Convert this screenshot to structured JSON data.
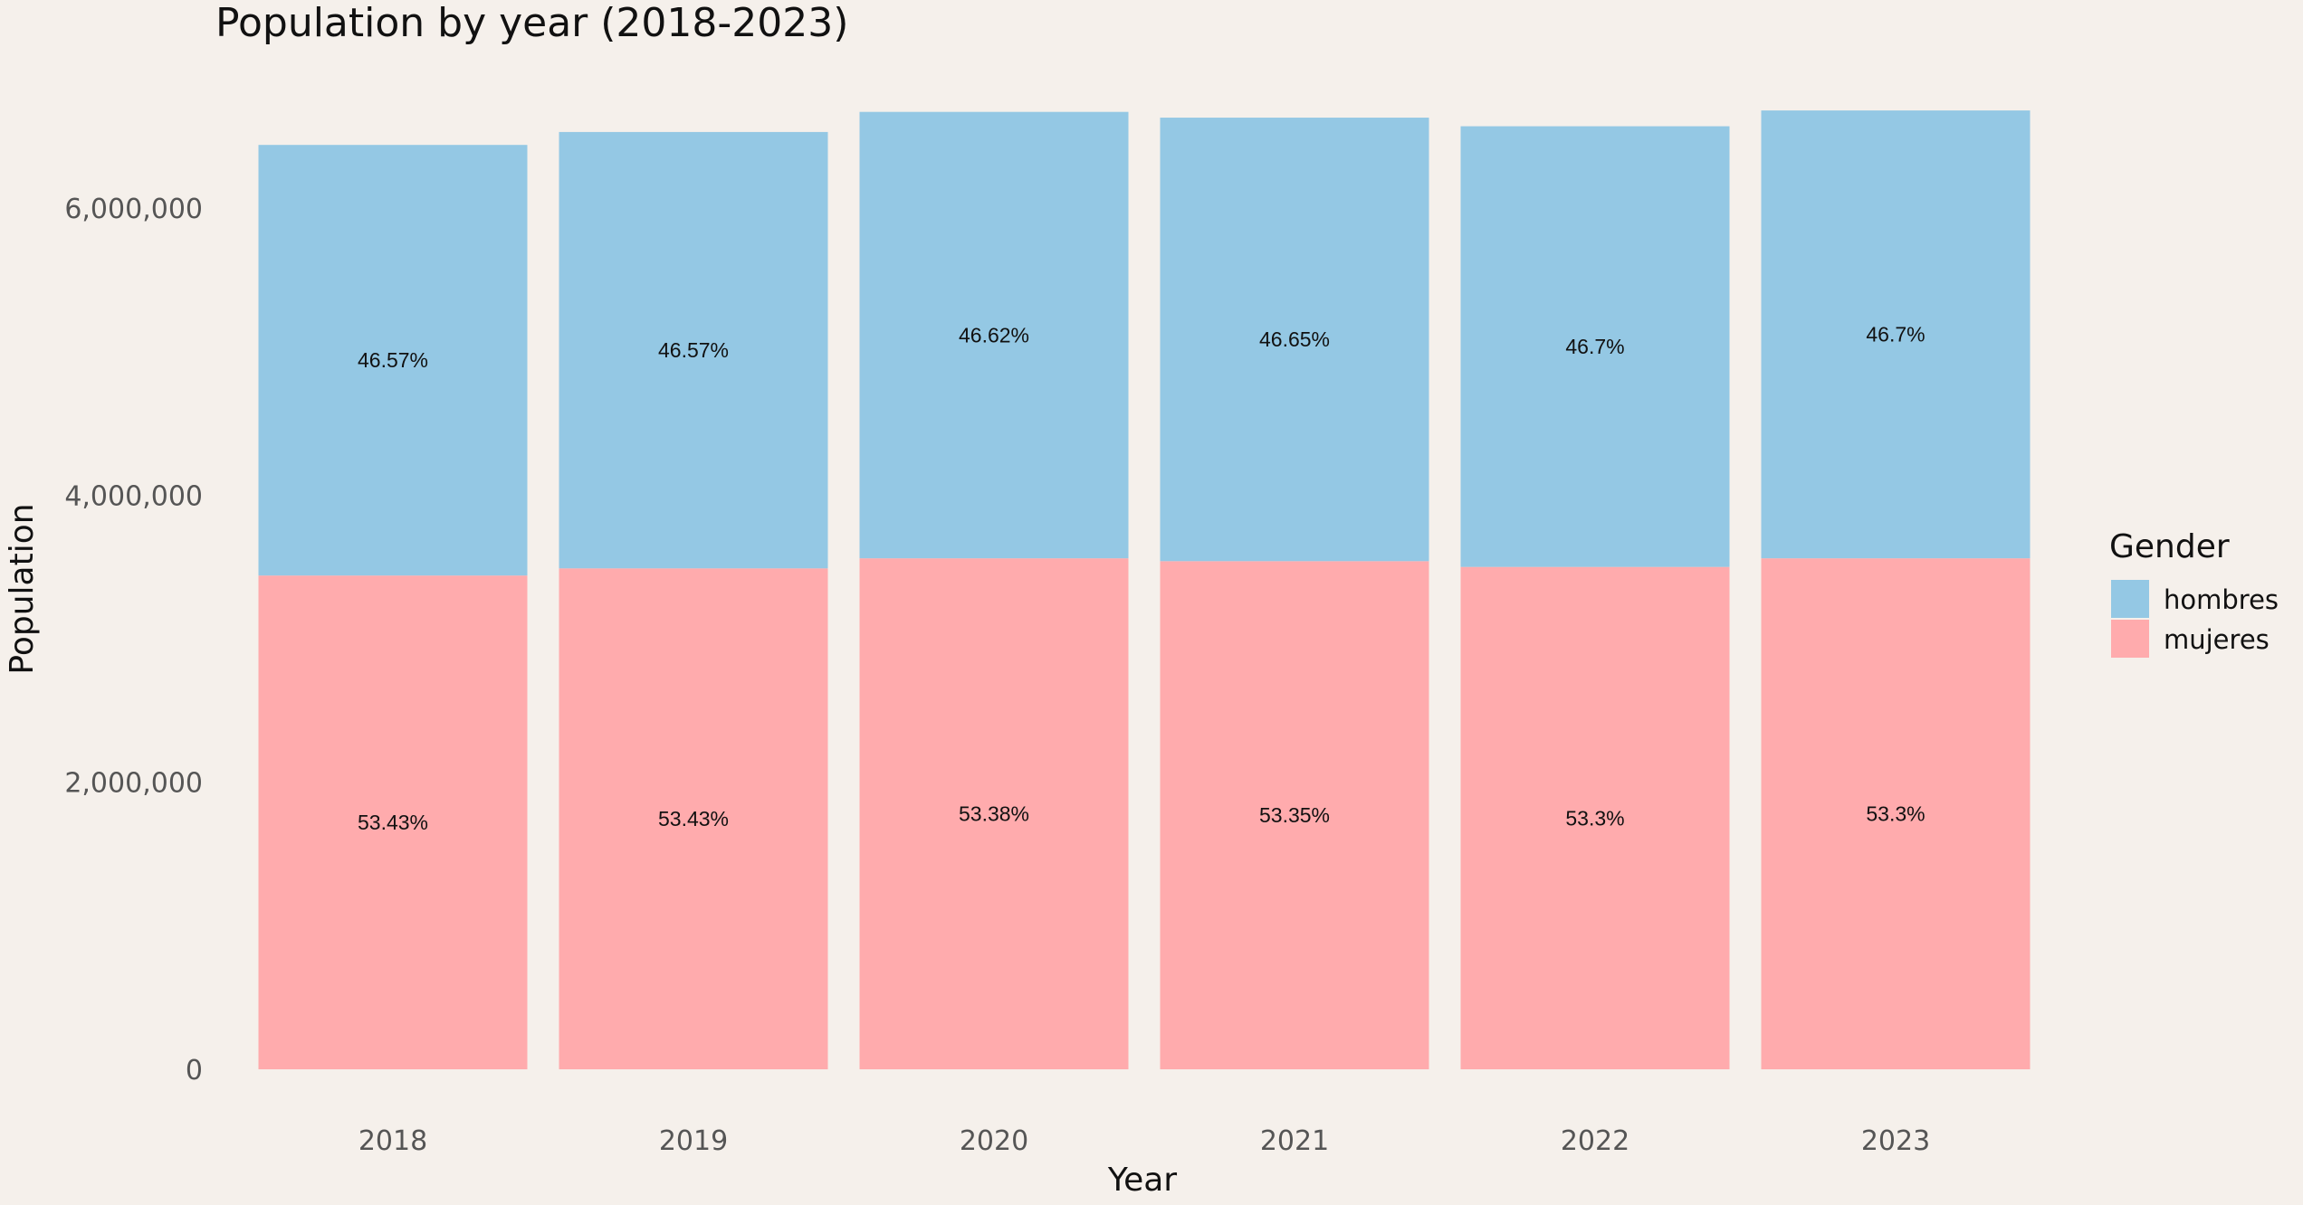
{
  "chart_data": {
    "type": "bar",
    "stacked": true,
    "title": "Population by year (2018-2023)",
    "xlabel": "Year",
    "ylabel": "Population",
    "categories": [
      "2018",
      "2019",
      "2020",
      "2021",
      "2022",
      "2023"
    ],
    "ylim": [
      0,
      6700000
    ],
    "yticks": [
      0,
      2000000,
      4000000,
      6000000
    ],
    "ytick_labels": [
      "0",
      "2,000,000",
      "4,000,000",
      "6,000,000"
    ],
    "grid": false,
    "legend": {
      "title": "Gender",
      "position": "right",
      "entries": [
        "hombres",
        "mujeres"
      ]
    },
    "series": [
      {
        "name": "mujeres",
        "color": "#ffabad",
        "values": [
          3440000,
          3490000,
          3560000,
          3540000,
          3500000,
          3560000
        ],
        "labels": [
          "53.43%",
          "53.43%",
          "53.38%",
          "53.35%",
          "53.3%",
          "53.3%"
        ]
      },
      {
        "name": "hombres",
        "color": "#94c8e4",
        "values": [
          3000000,
          3040000,
          3110000,
          3090000,
          3070000,
          3120000
        ],
        "labels": [
          "46.57%",
          "46.57%",
          "46.62%",
          "46.65%",
          "46.7%",
          "46.7%"
        ]
      }
    ]
  }
}
